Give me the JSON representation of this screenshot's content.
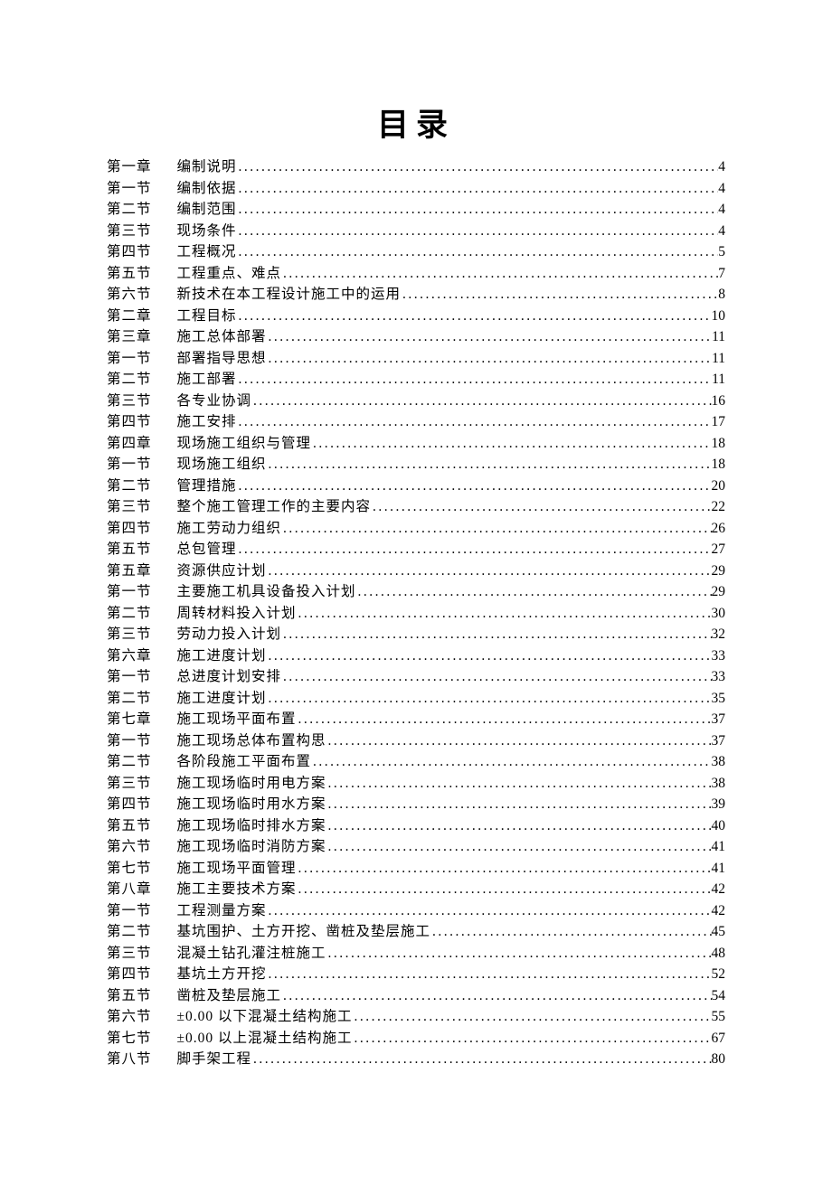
{
  "title": "目录",
  "title_fontsize": 35,
  "body_fontsize": 15.5,
  "line_height": 23.5,
  "text_color": "#000000",
  "background_color": "#ffffff",
  "font_family": "SimSun",
  "entries": [
    {
      "label": "第一章",
      "text": "编制说明",
      "page": "4"
    },
    {
      "label": "第一节",
      "text": "编制依据",
      "page": "4"
    },
    {
      "label": "第二节",
      "text": "编制范围",
      "page": "4"
    },
    {
      "label": "第三节",
      "text": "现场条件",
      "page": "4"
    },
    {
      "label": "第四节",
      "text": "工程概况",
      "page": "5"
    },
    {
      "label": "第五节",
      "text": "工程重点、难点",
      "page": "7"
    },
    {
      "label": "第六节",
      "text": "新技术在本工程设计施工中的运用",
      "page": "8"
    },
    {
      "label": "第二章",
      "text": "工程目标",
      "page": "10"
    },
    {
      "label": "第三章",
      "text": "施工总体部署",
      "page": "11"
    },
    {
      "label": "第一节",
      "text": "部署指导思想",
      "page": "11"
    },
    {
      "label": "第二节",
      "text": "施工部署",
      "page": "11"
    },
    {
      "label": "第三节",
      "text": "各专业协调",
      "page": "16"
    },
    {
      "label": "第四节",
      "text": "施工安排",
      "page": "17"
    },
    {
      "label": "第四章",
      "text": "现场施工组织与管理",
      "page": "18"
    },
    {
      "label": "第一节",
      "text": "现场施工组织",
      "page": "18"
    },
    {
      "label": "第二节",
      "text": "管理措施",
      "page": "20"
    },
    {
      "label": "第三节",
      "text": "整个施工管理工作的主要内容",
      "page": "22"
    },
    {
      "label": "第四节",
      "text": "施工劳动力组织",
      "page": "26"
    },
    {
      "label": "第五节",
      "text": "总包管理",
      "page": "27"
    },
    {
      "label": "第五章",
      "text": "资源供应计划",
      "page": "29"
    },
    {
      "label": "第一节",
      "text": "主要施工机具设备投入计划",
      "page": "29"
    },
    {
      "label": "第二节",
      "text": "周转材料投入计划",
      "page": "30"
    },
    {
      "label": "第三节",
      "text": "劳动力投入计划",
      "page": "32"
    },
    {
      "label": "第六章",
      "text": "施工进度计划",
      "page": "33"
    },
    {
      "label": "第一节",
      "text": "总进度计划安排",
      "page": "33"
    },
    {
      "label": "第二节",
      "text": "施工进度计划",
      "page": "35"
    },
    {
      "label": "第七章",
      "text": "施工现场平面布置",
      "page": "37"
    },
    {
      "label": "第一节",
      "text": "施工现场总体布置构思",
      "page": "37"
    },
    {
      "label": "第二节",
      "text": "各阶段施工平面布置",
      "page": "38"
    },
    {
      "label": "第三节",
      "text": "施工现场临时用电方案",
      "page": "38"
    },
    {
      "label": "第四节",
      "text": "施工现场临时用水方案",
      "page": "39"
    },
    {
      "label": "第五节",
      "text": "施工现场临时排水方案",
      "page": "40"
    },
    {
      "label": "第六节",
      "text": "施工现场临时消防方案",
      "page": "41"
    },
    {
      "label": "第七节",
      "text": "施工现场平面管理",
      "page": "41"
    },
    {
      "label": "第八章",
      "text": "施工主要技术方案",
      "page": "42"
    },
    {
      "label": "第一节",
      "text": "工程测量方案",
      "page": "42"
    },
    {
      "label": "第二节",
      "text": "基坑围护、土方开挖、凿桩及垫层施工",
      "page": "45"
    },
    {
      "label": "第三节",
      "text": "混凝土钻孔灌注桩施工",
      "page": "48"
    },
    {
      "label": "第四节",
      "text": "基坑土方开挖",
      "page": "52"
    },
    {
      "label": "第五节",
      "text": "凿桩及垫层施工",
      "page": "54"
    },
    {
      "label": "第六节",
      "text": "±0.00 以下混凝土结构施工",
      "page": "55"
    },
    {
      "label": "第七节",
      "text": "±0.00 以上混凝土结构施工",
      "page": "67"
    },
    {
      "label": "第八节",
      "text": "脚手架工程",
      "page": "80"
    }
  ]
}
